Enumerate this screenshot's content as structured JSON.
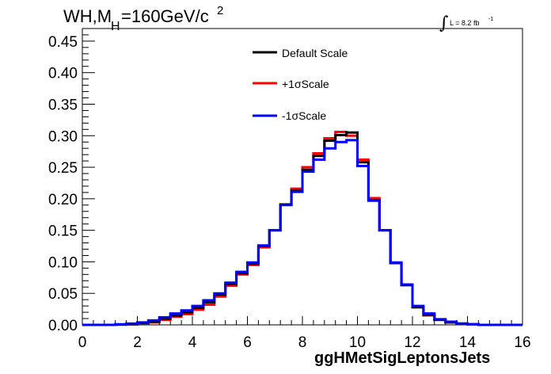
{
  "chart_data": {
    "type": "line",
    "step": true,
    "title_main": "WH,M",
    "title_sub": "H",
    "title_rest": "=160GeV/c",
    "title_sup": "2",
    "lumi_prefix": "L = 8.2 fb",
    "lumi_sup": "-1",
    "lumi_symbol": "∫",
    "xlabel": "ggHMetSigLeptonsJets",
    "ylabel": "",
    "xlim": [
      0,
      16
    ],
    "ylim": [
      0,
      0.47
    ],
    "x_ticks": [
      "0",
      "2",
      "4",
      "6",
      "8",
      "10",
      "12",
      "14",
      "16"
    ],
    "y_ticks": [
      "0.00",
      "0.05",
      "0.10",
      "0.15",
      "0.20",
      "0.25",
      "0.30",
      "0.35",
      "0.40",
      "0.45"
    ],
    "bin_width": 0.4,
    "legend_position": "top-center",
    "grid": false,
    "x": [
      0.0,
      0.4,
      0.8,
      1.2,
      1.6,
      2.0,
      2.4,
      2.8,
      3.2,
      3.6,
      4.0,
      4.4,
      4.8,
      5.2,
      5.6,
      6.0,
      6.4,
      6.8,
      7.2,
      7.6,
      8.0,
      8.4,
      8.8,
      9.2,
      9.6,
      10.0,
      10.4,
      10.8,
      11.2,
      11.6,
      12.0,
      12.4,
      12.8,
      13.2,
      13.6,
      14.0,
      14.4,
      14.8,
      15.2,
      15.6
    ],
    "series": [
      {
        "name": "Default Scale",
        "color": "#000000",
        "values": [
          0,
          0,
          0,
          0.0005,
          0.001,
          0.003,
          0.005,
          0.01,
          0.015,
          0.02,
          0.027,
          0.036,
          0.048,
          0.065,
          0.082,
          0.097,
          0.125,
          0.15,
          0.191,
          0.213,
          0.246,
          0.268,
          0.292,
          0.301,
          0.305,
          0.258,
          0.198,
          0.15,
          0.098,
          0.063,
          0.028,
          0.016,
          0.008,
          0.004,
          0.002,
          0.001,
          0,
          0,
          0,
          0
        ]
      },
      {
        "name": "+1σScale",
        "color": "#ff0000",
        "values": [
          0,
          0,
          0,
          0.0005,
          0.001,
          0.002,
          0.004,
          0.008,
          0.013,
          0.017,
          0.024,
          0.032,
          0.045,
          0.062,
          0.08,
          0.095,
          0.123,
          0.15,
          0.191,
          0.216,
          0.25,
          0.272,
          0.296,
          0.306,
          0.3,
          0.262,
          0.201,
          0.15,
          0.098,
          0.064,
          0.028,
          0.015,
          0.008,
          0.004,
          0.002,
          0.001,
          0,
          0,
          0,
          0
        ]
      },
      {
        "name": "-1σScale",
        "color": "#0000ff",
        "values": [
          0,
          0,
          0,
          0.001,
          0.002,
          0.004,
          0.007,
          0.012,
          0.018,
          0.023,
          0.03,
          0.039,
          0.05,
          0.067,
          0.084,
          0.099,
          0.126,
          0.15,
          0.19,
          0.211,
          0.243,
          0.262,
          0.28,
          0.29,
          0.293,
          0.252,
          0.197,
          0.15,
          0.099,
          0.064,
          0.03,
          0.018,
          0.009,
          0.005,
          0.002,
          0.001,
          0,
          0,
          0,
          0
        ]
      }
    ]
  }
}
